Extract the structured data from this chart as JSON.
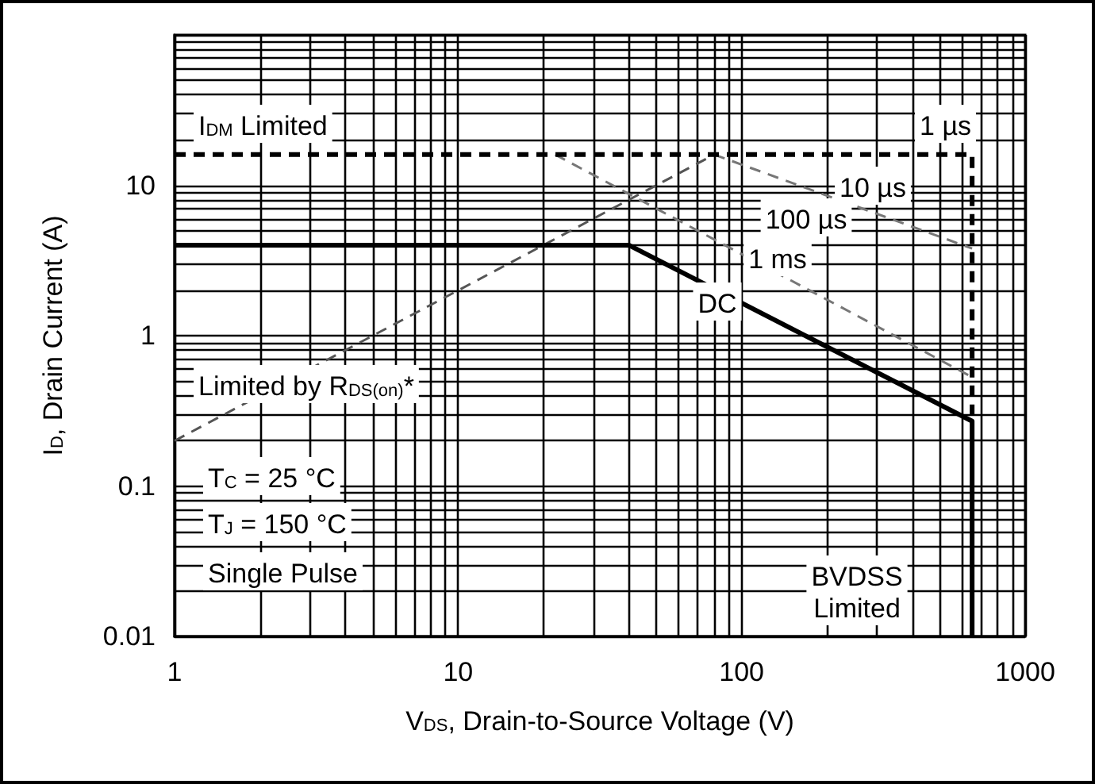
{
  "chart_data": {
    "type": "line",
    "xlabel": "V$_{DS}$, Drain-to-Source Voltage (V)",
    "ylabel": "I$_{D}$, Drain Current (A)",
    "log": "xy",
    "grid": true,
    "marker": "none",
    "xlim": [
      1,
      1000
    ],
    "xticks": [
      1,
      {
        "value": 2,
        "label": null
      },
      {
        "value": 3,
        "label": null
      },
      {
        "value": 4,
        "label": null
      },
      {
        "value": 5,
        "label": null
      },
      {
        "value": 6,
        "label": null
      },
      {
        "value": 7,
        "label": null
      },
      {
        "value": 8,
        "label": null
      },
      {
        "value": 9,
        "label": null
      },
      10,
      {
        "value": 20,
        "label": null
      },
      {
        "value": 30,
        "label": null
      },
      {
        "value": 40,
        "label": null
      },
      {
        "value": 50,
        "label": null
      },
      {
        "value": 60,
        "label": null
      },
      {
        "value": 70,
        "label": null
      },
      {
        "value": 80,
        "label": null
      },
      {
        "value": 90,
        "label": null
      },
      100,
      {
        "value": 200,
        "label": null
      },
      {
        "value": 300,
        "label": null
      },
      {
        "value": 400,
        "label": null
      },
      {
        "value": 500,
        "label": null
      },
      {
        "value": 600,
        "label": null
      },
      {
        "value": 700,
        "label": null
      },
      {
        "value": 800,
        "label": null
      },
      {
        "value": 900,
        "label": null
      },
      1000
    ],
    "ylim": [
      0.01,
      100
    ],
    "yticks": [
      0.01,
      {
        "value": 0.02,
        "label": null
      },
      {
        "value": 0.03,
        "label": null
      },
      {
        "value": 0.04,
        "label": null
      },
      {
        "value": 0.05,
        "label": null
      },
      {
        "value": 0.06,
        "label": null
      },
      {
        "value": 0.07,
        "label": null
      },
      {
        "value": 0.08,
        "label": null
      },
      {
        "value": 0.09,
        "label": null
      },
      0.1,
      {
        "value": 0.2,
        "label": null
      },
      {
        "value": 0.3,
        "label": null
      },
      {
        "value": 0.4,
        "label": null
      },
      {
        "value": 0.5,
        "label": null
      },
      {
        "value": 0.6,
        "label": null
      },
      {
        "value": 0.7,
        "label": null
      },
      {
        "value": 0.8,
        "label": null
      },
      {
        "value": 0.9,
        "label": null
      },
      1,
      {
        "value": 2,
        "label": null
      },
      {
        "value": 3,
        "label": null
      },
      {
        "value": 4,
        "label": null
      },
      {
        "value": 5,
        "label": null
      },
      {
        "value": 6,
        "label": null
      },
      {
        "value": 7,
        "label": null
      },
      {
        "value": 8,
        "label": null
      },
      {
        "value": 9,
        "label": null
      },
      10,
      {
        "value": 20,
        "label": null
      },
      {
        "value": 30,
        "label": null
      },
      {
        "value": 40,
        "label": null
      },
      {
        "value": 50,
        "label": null
      },
      {
        "value": 60,
        "label": null
      },
      {
        "value": 70,
        "label": null
      },
      {
        "value": 80,
        "label": null
      },
      {
        "value": 90,
        "label": null
      },
      {
        "value": 100,
        "label": null
      }
    ],
    "series": [
      {
        "color": "#000000",
        "line_style": "solid",
        "x": [
          1,
          40,
          650,
          650
        ],
        "values": [
          4,
          4,
          0.27,
          0.01
        ]
      },
      {
        "color": "#000000",
        "line_style": "dashed",
        "x": [
          1,
          650,
          650
        ],
        "values": [
          16,
          16,
          0.27
        ]
      },
      {
        "color": "#555555",
        "line_style": "dashed",
        "x": [
          1,
          80
        ],
        "values": [
          0.2,
          16
        ]
      },
      {
        "color": "#777777",
        "line_style": "dashed",
        "x": [
          22,
          650
        ],
        "values": [
          16,
          0.53
        ]
      },
      {
        "color": "#777777",
        "line_style": "dashed",
        "x": [
          80,
          650
        ],
        "values": [
          16,
          3.8
        ]
      }
    ],
    "annotations": [
      "I$_{DM}$ Limited",
      "1 µs",
      "10 µs",
      "100 µs",
      "1 ms",
      "DC",
      "Limited by R$_{DS(on)}$*",
      "BVDSS\nLimited",
      "T$_{C}$ = 25 °C",
      "T$_{J}$ = 150 °C",
      "Single Pulse"
    ]
  }
}
